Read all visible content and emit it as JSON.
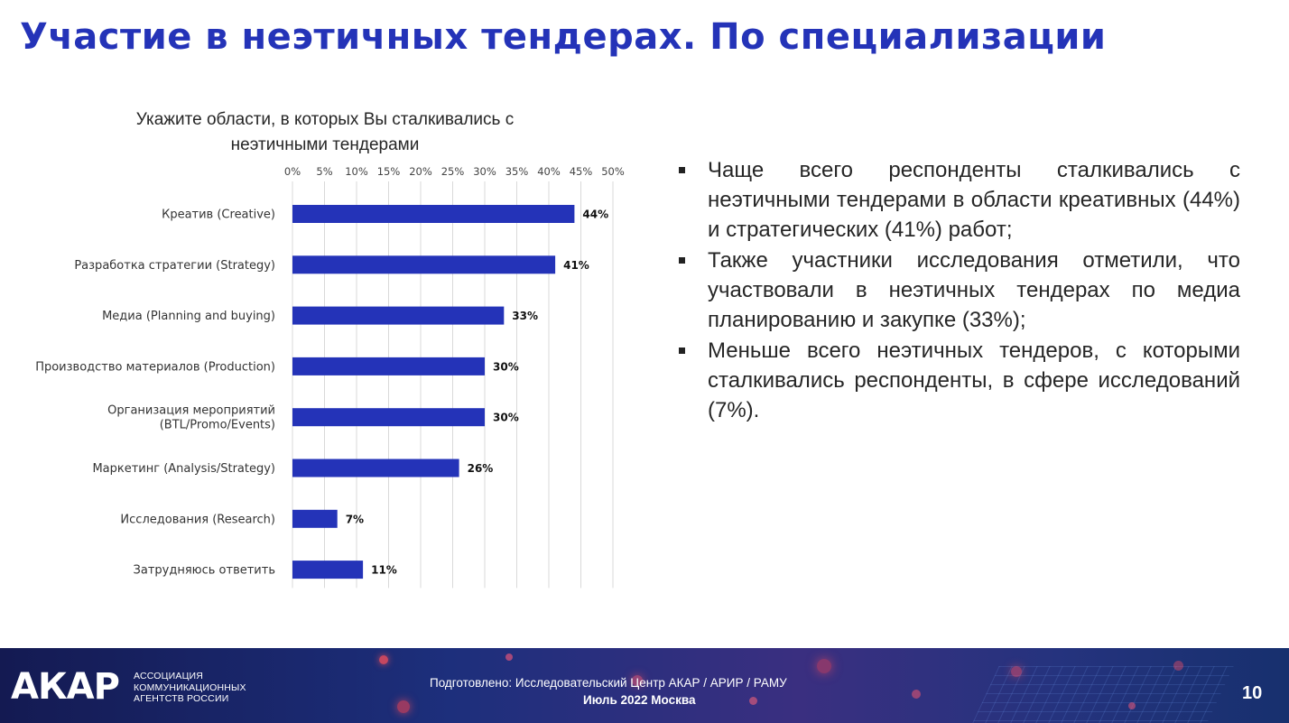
{
  "slide": {
    "title": "Участие в неэтичных тендерах. По специализации"
  },
  "chart_data": {
    "type": "bar",
    "orientation": "horizontal",
    "title": "Укажите области, в которых Вы сталкивались с неэтичными тендерами",
    "categories": [
      [
        "Креатив (Creative)"
      ],
      [
        "Разработка стратегии (Strategy)"
      ],
      [
        "Медиа (Planning and buying)"
      ],
      [
        "Производство материалов (Production)"
      ],
      [
        "Организация мероприятий",
        "(BTL/Promo/Events)"
      ],
      [
        "Маркетинг (Analysis/Strategy)"
      ],
      [
        "Исследования (Research)"
      ],
      [
        "Затрудняюсь ответить"
      ]
    ],
    "values": [
      44,
      41,
      33,
      30,
      30,
      26,
      7,
      11
    ],
    "data_labels": [
      "44%",
      "41%",
      "33%",
      "30%",
      "30%",
      "26%",
      "7%",
      "11%"
    ],
    "xlim": [
      0,
      50
    ],
    "x_ticks": [
      0,
      5,
      10,
      15,
      20,
      25,
      30,
      35,
      40,
      45,
      50
    ],
    "x_tick_labels": [
      "0%",
      "5%",
      "10%",
      "15%",
      "20%",
      "25%",
      "30%",
      "35%",
      "40%",
      "45%",
      "50%"
    ],
    "x_axis_position": "top",
    "grid": true,
    "bar_color": "#2433b8"
  },
  "bullets": [
    "Чаще всего респонденты сталкивались с неэтичными тендерами в области креативных (44%) и стратегических (41%) работ;",
    "Также участники исследования отметили, что участвовали в неэтичных тендерах по медиа планированию и закупке (33%);",
    "Меньше всего неэтичных тендеров, с которыми сталкивались респонденты, в сфере исследований (7%)."
  ],
  "footer": {
    "logo_text": "АКАР",
    "logo_subtitle": [
      "Ассоциация",
      "коммуникационных",
      "агентств России"
    ],
    "credit": "Подготовлено: Исследовательский Центр АКАР / АРИР / РАМУ",
    "date": "Июль 2022 Москва",
    "page_number": "10"
  },
  "colors": {
    "title": "#2433b8",
    "bar": "#2433b8",
    "footer_bg": "#1d2f7c"
  }
}
